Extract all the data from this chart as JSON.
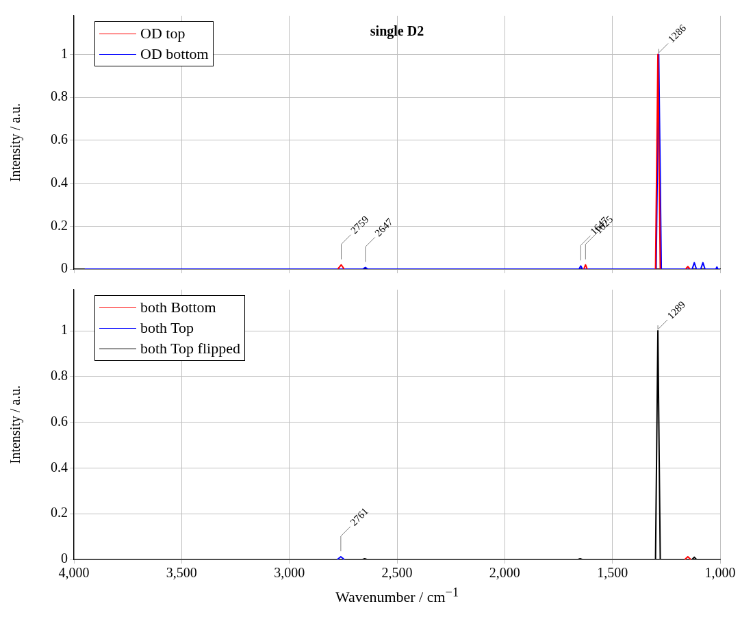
{
  "chart_data": [
    {
      "type": "line",
      "title": "single D2",
      "ylabel": "Intensity / a.u.",
      "xlim": [
        4000,
        1000
      ],
      "ylim": [
        0,
        1.18
      ],
      "xticks": [
        {
          "value": 4000,
          "label": null
        },
        {
          "value": 3500,
          "label": null
        },
        {
          "value": 3000,
          "label": null
        },
        {
          "value": 2500,
          "label": null
        },
        {
          "value": 2000,
          "label": null
        },
        {
          "value": 1500,
          "label": null
        },
        {
          "value": 1000,
          "label": null
        }
      ],
      "yticks": [
        0,
        0.2,
        0.4,
        0.6,
        0.8,
        1
      ],
      "grid": true,
      "legend": "top left",
      "tick_labels": "y",
      "marker": "none",
      "line_style": "solid",
      "series": [
        {
          "name": "OD top",
          "color": "#ff0000",
          "x": [
            2775,
            2759,
            2745,
            2000,
            1633,
            1625,
            1617,
            1450,
            1300,
            1289,
            1278,
            1200,
            1160,
            1150,
            1140
          ],
          "values": [
            0,
            0.02,
            0,
            null,
            0,
            0.02,
            0,
            null,
            0,
            1,
            0,
            null,
            0,
            0.012,
            0
          ]
        },
        {
          "name": "OD bottom",
          "color": "#0000ff",
          "x": [
            3950,
            2660,
            2647,
            2635,
            1655,
            1647,
            1639,
            1297,
            1285,
            1273,
            1130,
            1120,
            1110,
            1090,
            1080,
            1070,
            1020,
            1015,
            1010,
            1000
          ],
          "values": [
            0,
            0,
            0.008,
            0,
            0,
            0.015,
            0,
            0,
            1,
            0,
            0,
            0.03,
            0,
            0,
            0.03,
            0,
            0,
            0.01,
            0,
            0
          ]
        }
      ],
      "annotations": [
        {
          "text": "1286",
          "x": 1286,
          "y": 1
        },
        {
          "text": "2759",
          "x": 2759,
          "y": 0.02
        },
        {
          "text": "2647",
          "x": 2647,
          "y": 0.008
        },
        {
          "text": "1647",
          "x": 1647,
          "y": 0.015
        },
        {
          "text": "1625",
          "x": 1625,
          "y": 0.02
        }
      ]
    },
    {
      "type": "line",
      "xlabel": "Wavenumber / cm$^{−1}$",
      "ylabel": "Intensity / a.u.",
      "xlim": [
        4000,
        1000
      ],
      "ylim": [
        0,
        1.18
      ],
      "xticks": [
        {
          "value": 4000,
          "label": "4,000"
        },
        {
          "value": 3500,
          "label": "3,500"
        },
        {
          "value": 3000,
          "label": "3,000"
        },
        {
          "value": 2500,
          "label": "2,500"
        },
        {
          "value": 2000,
          "label": "2,000"
        },
        {
          "value": 1500,
          "label": "1,500"
        },
        {
          "value": 1000,
          "label": "1,000"
        }
      ],
      "yticks": [
        0,
        0.2,
        0.4,
        0.6,
        0.8,
        1
      ],
      "grid": true,
      "legend": "top left",
      "marker": "none",
      "line_style": "solid",
      "series": [
        {
          "name": "both Bottom",
          "color": "#ff0000",
          "x": [
            1164,
            1150,
            1136
          ],
          "values": [
            0,
            0.012,
            0
          ]
        },
        {
          "name": "both Top",
          "color": "#0000ff",
          "x": [
            2777,
            2761,
            2745
          ],
          "values": [
            0,
            0.012,
            0
          ]
        },
        {
          "name": "both Top flipped",
          "color": "#000000",
          "x": [
            4000,
            2660,
            2650,
            2640,
            1660,
            1650,
            1640,
            1300,
            1289,
            1278,
            1130,
            1120,
            1110,
            1000
          ],
          "values": [
            0,
            0,
            0.003,
            0,
            0,
            0.003,
            0,
            0,
            1,
            0,
            0,
            0.01,
            0,
            0
          ]
        }
      ],
      "annotations": [
        {
          "text": "1289",
          "x": 1289,
          "y": 1
        },
        {
          "text": "2761",
          "x": 2761,
          "y": 0.012
        }
      ]
    }
  ]
}
